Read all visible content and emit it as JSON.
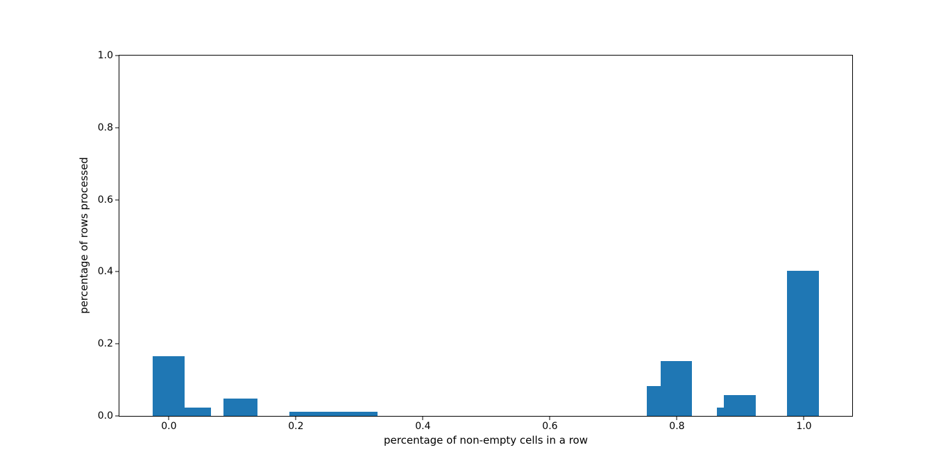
{
  "chart_data": {
    "type": "bar",
    "title": "",
    "xlabel": "percentage of non-empty cells in a row",
    "ylabel": "percentage of rows processed",
    "xlim": [
      -0.078,
      1.076
    ],
    "ylim": [
      0.0,
      1.0
    ],
    "xticks": {
      "values": [
        0.0,
        0.2,
        0.4,
        0.6,
        0.8,
        1.0
      ],
      "labels": [
        "0.0",
        "0.2",
        "0.4",
        "0.6",
        "0.8",
        "1.0"
      ]
    },
    "yticks": {
      "values": [
        0.0,
        0.2,
        0.4,
        0.6,
        0.8,
        1.0
      ],
      "labels": [
        "0.0",
        "0.2",
        "0.4",
        "0.6",
        "0.8",
        "1.0"
      ]
    },
    "grid": false,
    "legend_visible": false,
    "bar_color": "#1f77b4",
    "bars": [
      {
        "x_left": -0.026,
        "x_right": 0.025,
        "height": 0.165
      },
      {
        "x_left": 0.025,
        "x_right": 0.066,
        "height": 0.024
      },
      {
        "x_left": 0.086,
        "x_right": 0.139,
        "height": 0.048
      },
      {
        "x_left": 0.19,
        "x_right": 0.329,
        "height": 0.011
      },
      {
        "x_left": 0.752,
        "x_right": 0.774,
        "height": 0.082
      },
      {
        "x_left": 0.774,
        "x_right": 0.824,
        "height": 0.153
      },
      {
        "x_left": 0.863,
        "x_right": 0.874,
        "height": 0.023
      },
      {
        "x_left": 0.874,
        "x_right": 0.924,
        "height": 0.058
      },
      {
        "x_left": 0.973,
        "x_right": 1.024,
        "height": 0.402
      }
    ]
  },
  "colors": {
    "background": "#ffffff",
    "axis": "#000000",
    "bar": "#1f77b4"
  }
}
